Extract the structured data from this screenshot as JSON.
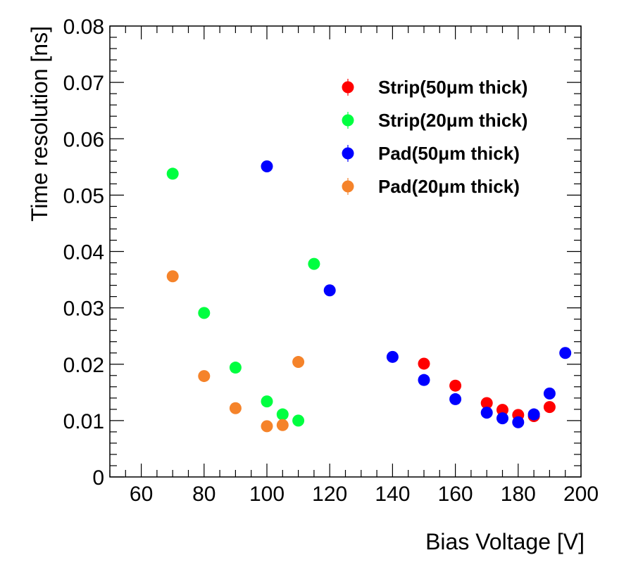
{
  "chart_data": {
    "type": "scatter",
    "title": "",
    "xlabel": "Bias Voltage [V]",
    "ylabel": "Time resolution [ns]",
    "xlim": [
      50,
      200
    ],
    "ylim": [
      0,
      0.08
    ],
    "x_ticks": [
      "60",
      "80",
      "100",
      "120",
      "140",
      "160",
      "180",
      "200"
    ],
    "y_ticks": [
      "0",
      "0.01",
      "0.02",
      "0.03",
      "0.04",
      "0.05",
      "0.06",
      "0.07",
      "0.08"
    ],
    "grid": false,
    "legend_position": "top-right",
    "series": [
      {
        "name": "Strip(50μm thick)",
        "color": "#ff0000",
        "points": [
          [
            150,
            0.0201
          ],
          [
            160,
            0.0162
          ],
          [
            170,
            0.0131
          ],
          [
            175,
            0.0119
          ],
          [
            180,
            0.011
          ],
          [
            185,
            0.0108
          ],
          [
            190,
            0.0124
          ]
        ]
      },
      {
        "name": "Strip(20μm thick)",
        "color": "#00ff40",
        "points": [
          [
            70,
            0.0538
          ],
          [
            80,
            0.0291
          ],
          [
            90,
            0.0194
          ],
          [
            100,
            0.0134
          ],
          [
            105,
            0.0111
          ],
          [
            110,
            0.01
          ],
          [
            115,
            0.0378
          ]
        ]
      },
      {
        "name": "Pad(50μm thick)",
        "color": "#0000ff",
        "points": [
          [
            100,
            0.0551
          ],
          [
            120,
            0.0331
          ],
          [
            140,
            0.0213
          ],
          [
            150,
            0.0172
          ],
          [
            160,
            0.0138
          ],
          [
            170,
            0.0114
          ],
          [
            175,
            0.0104
          ],
          [
            180,
            0.0097
          ],
          [
            185,
            0.0111
          ],
          [
            190,
            0.0148
          ],
          [
            195,
            0.022
          ]
        ]
      },
      {
        "name": "Pad(20μm thick)",
        "color": "#f5832a",
        "points": [
          [
            70,
            0.0356
          ],
          [
            80,
            0.0179
          ],
          [
            90,
            0.0122
          ],
          [
            100,
            0.009
          ],
          [
            105,
            0.0092
          ],
          [
            110,
            0.0204
          ]
        ]
      }
    ]
  }
}
